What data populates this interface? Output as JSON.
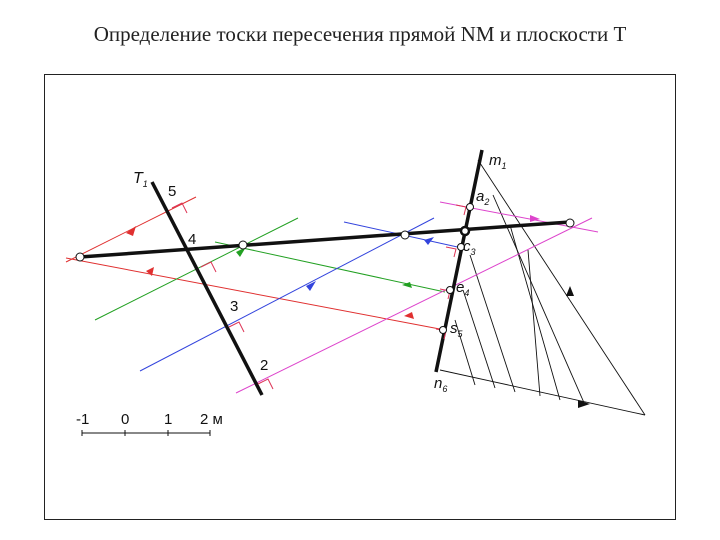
{
  "title": "Определение тоски пересечения прямой NM и плоскости T",
  "labels": {
    "t1": "T",
    "t1_sub": "1",
    "m1": "m",
    "m1_sub": "1",
    "a2": "a",
    "a2_sub": "2",
    "c3": "c",
    "c3_sub": "3",
    "e4": "e",
    "e4_sub": "4",
    "s5": "s",
    "s5_sub": "5",
    "n6": "n",
    "n6_sub": "6",
    "p5": "5",
    "p4": "4",
    "p3": "3",
    "p2": "2"
  },
  "scale": {
    "ticks": [
      "-1",
      "0",
      "1",
      "2 м"
    ]
  },
  "colors": {
    "red": "#e03030",
    "green": "#22a022",
    "blue": "#3344dd",
    "magenta": "#dd44cc",
    "black": "#111111"
  }
}
